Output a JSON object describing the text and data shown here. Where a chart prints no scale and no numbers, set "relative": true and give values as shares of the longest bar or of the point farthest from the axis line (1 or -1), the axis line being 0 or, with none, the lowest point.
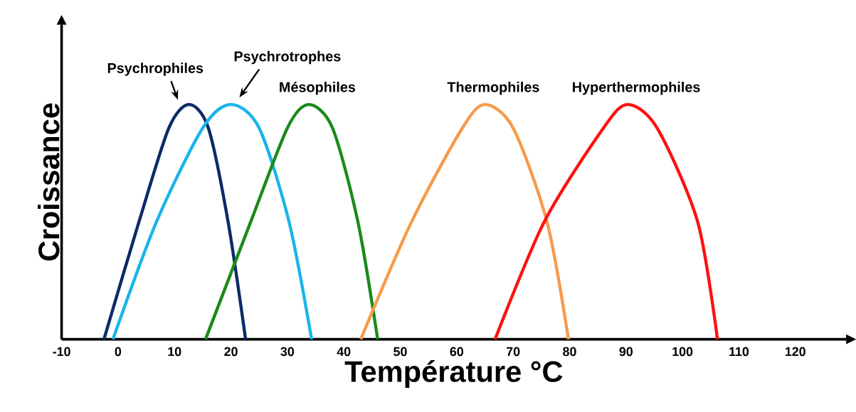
{
  "chart_data": {
    "type": "line",
    "relative": true,
    "xlabel": "Température  °C",
    "ylabel": "Croissance",
    "xlim": [
      -10,
      129
    ],
    "xticks": [
      -10,
      0,
      10,
      20,
      30,
      40,
      50,
      60,
      70,
      80,
      90,
      100,
      110,
      120
    ],
    "series": [
      {
        "name": "Psychrophiles",
        "color": "#0d2a66",
        "x": [
          -2.5,
          3.7,
          9,
          12.6,
          16,
          19.5,
          22.6
        ],
        "values": [
          0,
          0.5,
          0.9,
          1,
          0.9,
          0.5,
          0
        ]
      },
      {
        "name": "Psychrotrophes",
        "color": "#19b4ea",
        "x": [
          -0.9,
          6.8,
          15,
          20,
          25,
          30.3,
          34.3
        ],
        "values": [
          0,
          0.5,
          0.9,
          1,
          0.9,
          0.5,
          0
        ]
      },
      {
        "name": "Mésophiles",
        "color": "#1a8a1a",
        "x": [
          15.5,
          23.5,
          30,
          33.8,
          38,
          42.5,
          46
        ],
        "values": [
          0,
          0.5,
          0.9,
          1,
          0.9,
          0.5,
          0
        ]
      },
      {
        "name": "Thermophiles",
        "color": "#f79a4a",
        "x": [
          43,
          52,
          61,
          65,
          70,
          76,
          79.8
        ],
        "values": [
          0,
          0.5,
          0.9,
          1,
          0.9,
          0.5,
          0
        ]
      },
      {
        "name": "Hyperthermophiles",
        "color": "#ff1010",
        "x": [
          66.8,
          75.5,
          86,
          90.3,
          95.5,
          102.7,
          106.2
        ],
        "values": [
          0,
          0.5,
          0.9,
          1,
          0.9,
          0.5,
          0
        ]
      }
    ]
  }
}
